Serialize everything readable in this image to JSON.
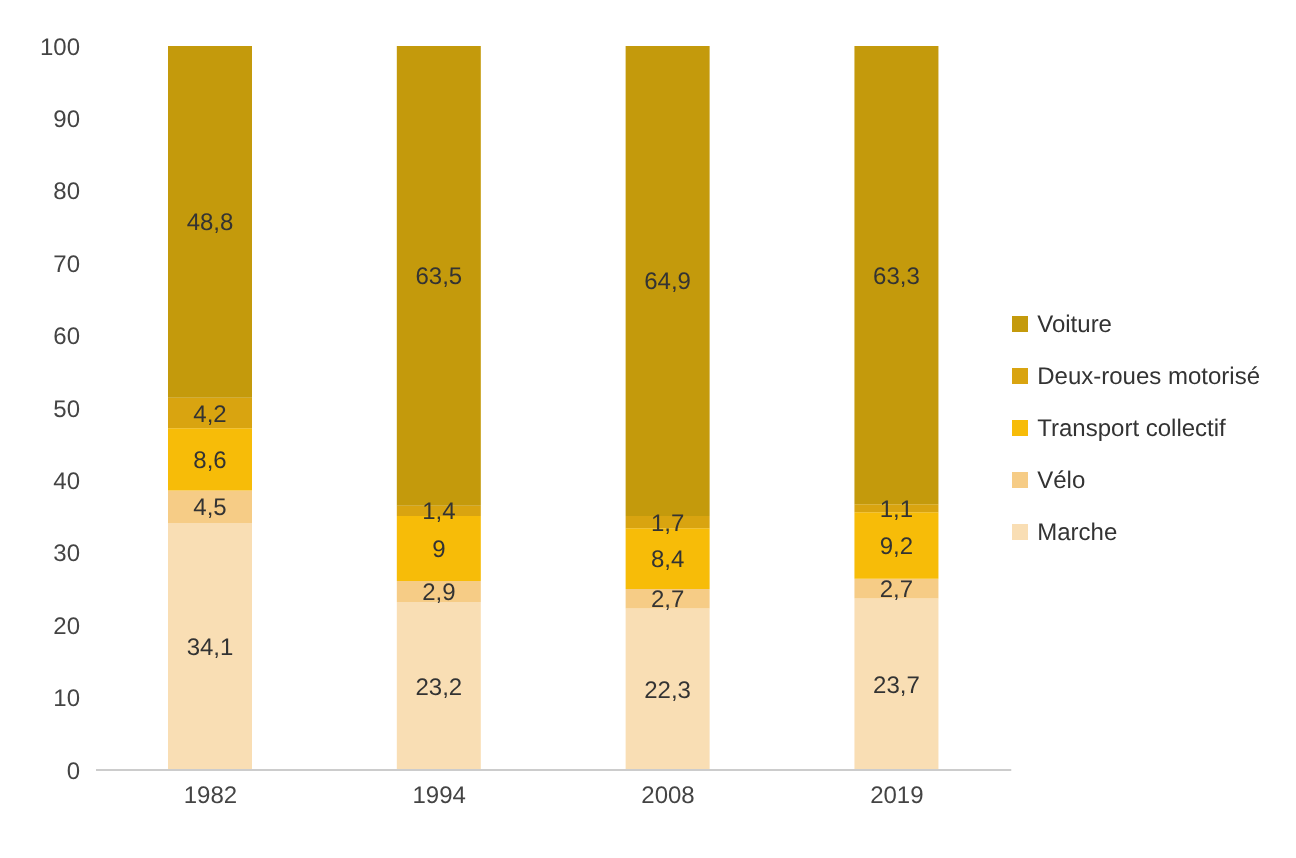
{
  "chart_data": {
    "type": "bar",
    "stacked": true,
    "categories": [
      "1982",
      "1994",
      "2008",
      "2019"
    ],
    "series": [
      {
        "name": "Marche",
        "color": "#f9deb4",
        "values": [
          34.1,
          23.2,
          22.3,
          23.7
        ],
        "value_labels": [
          "34,1",
          "23,2",
          "22,3",
          "23,7"
        ]
      },
      {
        "name": "Vélo",
        "color": "#f6cc86",
        "values": [
          4.5,
          2.9,
          2.7,
          2.7
        ],
        "value_labels": [
          "4,5",
          "2,9",
          "2,7",
          "2,7"
        ]
      },
      {
        "name": "Transport collectif",
        "color": "#f7bc08",
        "values": [
          8.6,
          9,
          8.4,
          9.2
        ],
        "value_labels": [
          "8,6",
          "9",
          "8,4",
          "9,2"
        ]
      },
      {
        "name": "Deux-roues motorisé",
        "color": "#d9a410",
        "values": [
          4.2,
          1.4,
          1.7,
          1.1
        ],
        "value_labels": [
          "4,2",
          "1,4",
          "1,7",
          "1,1"
        ]
      },
      {
        "name": "Voiture",
        "color": "#c49a0c",
        "values": [
          48.8,
          63.5,
          64.9,
          63.3
        ],
        "value_labels": [
          "48,8",
          "63,5",
          "64,9",
          "63,3"
        ]
      }
    ],
    "ylim": [
      0,
      100
    ],
    "yticks": [
      0,
      10,
      20,
      30,
      40,
      50,
      60,
      70,
      80,
      90,
      100
    ],
    "legend": "right",
    "grid": false
  }
}
